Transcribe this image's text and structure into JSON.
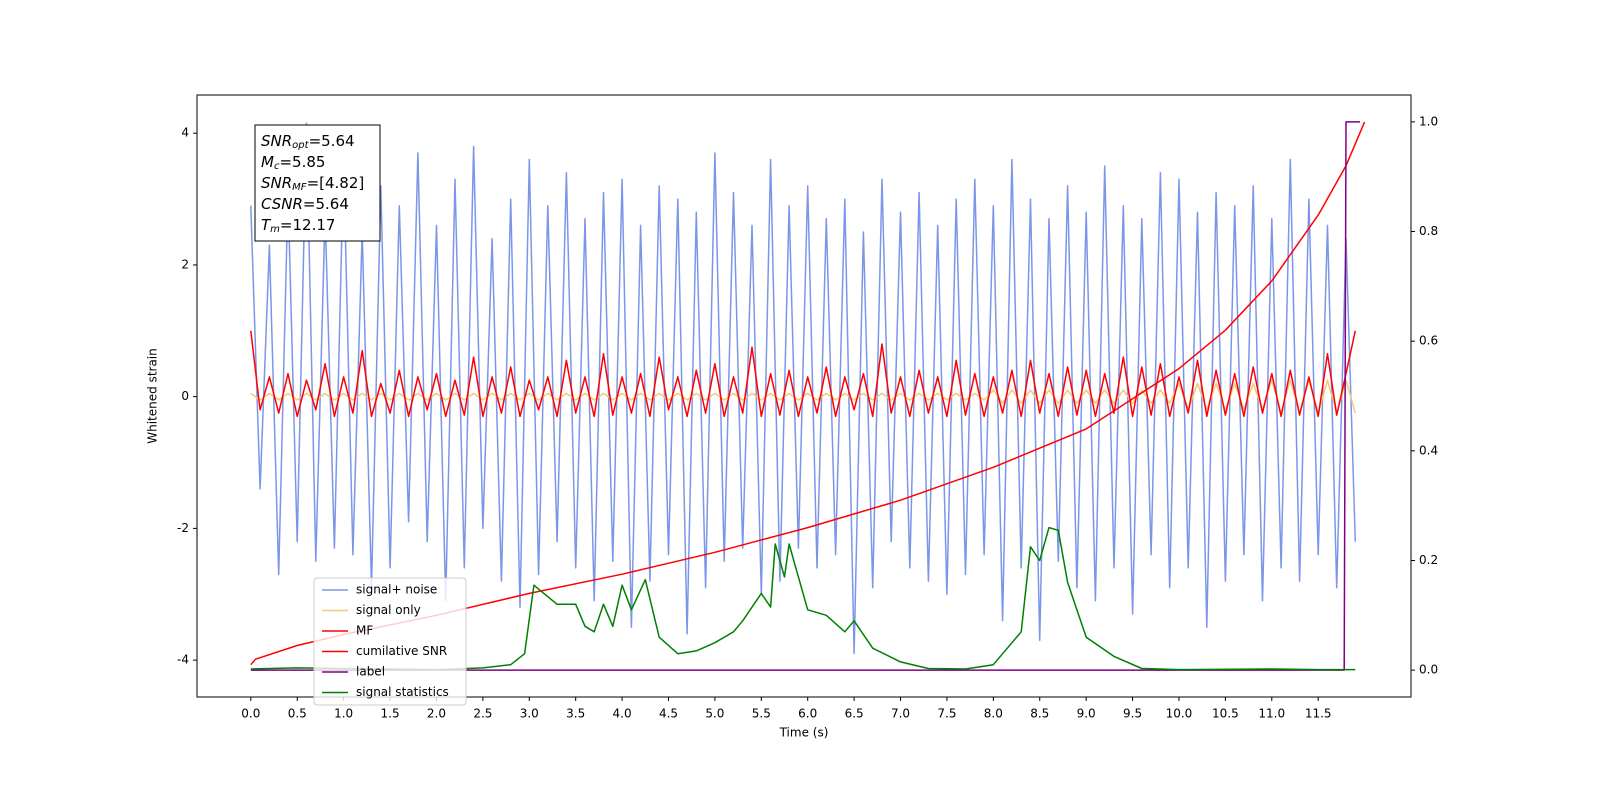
{
  "chart_data": {
    "type": "line",
    "xlabel": "Time (s)",
    "ylabel": "Whitened strain",
    "xlim": [
      -0.58,
      12.5
    ],
    "ylim": [
      -4.56,
      4.58
    ],
    "y2lim": [
      -0.049,
      1.049
    ],
    "xticks": [
      {
        "value": 0,
        "label": "0.0"
      },
      0.5,
      {
        "value": 1,
        "label": "1.0"
      },
      1.5,
      {
        "value": 2,
        "label": "2.0"
      },
      2.5,
      {
        "value": 3,
        "label": "3.0"
      },
      3.5,
      {
        "value": 4,
        "label": "4.0"
      },
      4.5,
      {
        "value": 5,
        "label": "5.0"
      },
      5.5,
      {
        "value": 6,
        "label": "6.0"
      },
      6.5,
      {
        "value": 7,
        "label": "7.0"
      },
      7.5,
      {
        "value": 8,
        "label": "8.0"
      },
      8.5,
      {
        "value": 9,
        "label": "9.0"
      },
      9.5,
      {
        "value": 10,
        "label": "10.0"
      },
      10.5,
      {
        "value": 11,
        "label": "11.0"
      },
      11.5
    ],
    "yticks": [
      -4,
      -2,
      0,
      2,
      4
    ],
    "y2ticks": [
      {
        "value": 0,
        "label": "0.0"
      },
      0.2,
      0.4,
      0.6,
      0.8,
      {
        "value": 1,
        "label": "1.0"
      }
    ],
    "legend": "lower left",
    "annotation": [
      {
        "main": "SNR",
        "sub": "opt",
        "rest": "=5.64"
      },
      {
        "main": "M",
        "sub": "c",
        "rest": "=5.85"
      },
      {
        "main": "SNR",
        "sub": "MF",
        "rest": "=[4.82]"
      },
      {
        "main": "CSNR",
        "rest": "=5.64"
      },
      {
        "main": "T",
        "sub": "m",
        "rest": "=12.17"
      }
    ],
    "x": [
      0.0,
      0.1,
      0.2,
      0.3,
      0.4,
      0.5,
      0.6,
      0.7,
      0.8,
      0.9,
      1.0,
      1.1,
      1.2,
      1.3,
      1.4,
      1.5,
      1.6,
      1.7,
      1.8,
      1.9,
      2.0,
      2.1,
      2.2,
      2.3,
      2.4,
      2.5,
      2.6,
      2.7,
      2.8,
      2.9,
      3.0,
      3.1,
      3.2,
      3.3,
      3.4,
      3.5,
      3.6,
      3.7,
      3.8,
      3.9,
      4.0,
      4.1,
      4.2,
      4.3,
      4.4,
      4.5,
      4.6,
      4.7,
      4.8,
      4.9,
      5.0,
      5.1,
      5.2,
      5.3,
      5.4,
      5.5,
      5.6,
      5.7,
      5.8,
      5.9,
      6.0,
      6.1,
      6.2,
      6.3,
      6.4,
      6.5,
      6.6,
      6.7,
      6.8,
      6.9,
      7.0,
      7.1,
      7.2,
      7.3,
      7.4,
      7.5,
      7.6,
      7.7,
      7.8,
      7.9,
      8.0,
      8.1,
      8.2,
      8.3,
      8.4,
      8.5,
      8.6,
      8.7,
      8.8,
      8.9,
      9.0,
      9.1,
      9.2,
      9.3,
      9.4,
      9.5,
      9.6,
      9.7,
      9.8,
      9.9,
      10.0,
      10.1,
      10.2,
      10.3,
      10.4,
      10.5,
      10.6,
      10.7,
      10.8,
      10.9,
      11.0,
      11.1,
      11.2,
      11.3,
      11.4,
      11.5,
      11.6,
      11.7,
      11.8,
      11.9
    ],
    "series": [
      {
        "name": "signal+ noise",
        "color": "#7b96e8",
        "values": [
          2.9,
          -1.4,
          2.3,
          -2.7,
          3.1,
          -2.2,
          4.15,
          -2.5,
          2.8,
          -2.3,
          3.6,
          -2.4,
          2.5,
          -2.9,
          3.2,
          -2.6,
          2.9,
          -1.9,
          3.7,
          -2.2,
          2.6,
          -3.1,
          3.3,
          -2.6,
          3.8,
          -2.0,
          2.4,
          -2.8,
          3.0,
          -3.2,
          3.6,
          -2.7,
          2.9,
          -2.2,
          3.4,
          -2.6,
          2.7,
          -3.1,
          3.1,
          -2.5,
          3.3,
          -3.5,
          2.6,
          -2.8,
          3.2,
          -2.4,
          3.0,
          -3.6,
          2.8,
          -2.9,
          3.7,
          -2.5,
          3.1,
          -2.3,
          2.6,
          -3.0,
          3.6,
          -2.8,
          2.9,
          -2.3,
          3.2,
          -2.6,
          2.7,
          -2.4,
          3.0,
          -3.9,
          2.5,
          -2.9,
          3.3,
          -2.2,
          2.8,
          -2.6,
          3.1,
          -2.8,
          2.6,
          -3.0,
          3.0,
          -2.7,
          3.3,
          -2.4,
          2.9,
          -3.4,
          3.6,
          -2.6,
          3.0,
          -3.7,
          2.7,
          -2.5,
          3.2,
          -2.9,
          2.8,
          -3.1,
          3.5,
          -2.6,
          2.9,
          -3.3,
          2.7,
          -2.4,
          3.4,
          -2.9,
          3.3,
          -2.6,
          2.8,
          -3.5,
          3.1,
          -2.8,
          2.9,
          -2.4,
          3.2,
          -3.1,
          2.7,
          -2.6,
          3.6,
          -2.8,
          3.0,
          -2.4,
          2.6,
          -2.9,
          2.4,
          -2.2
        ]
      },
      {
        "name": "signal only",
        "color": "#f5c87a",
        "values": [
          0.05,
          -0.05,
          0.05,
          -0.05,
          0.05,
          -0.05,
          0.05,
          -0.05,
          0.05,
          -0.05,
          0.05,
          -0.05,
          0.05,
          -0.05,
          0.05,
          -0.05,
          0.05,
          -0.05,
          0.05,
          -0.05,
          0.05,
          -0.05,
          0.05,
          -0.05,
          0.05,
          -0.05,
          0.05,
          -0.05,
          0.05,
          -0.05,
          0.05,
          -0.05,
          0.05,
          -0.05,
          0.05,
          -0.05,
          0.05,
          -0.05,
          0.05,
          -0.05,
          0.05,
          -0.05,
          0.05,
          -0.05,
          0.05,
          -0.05,
          0.05,
          -0.05,
          0.05,
          -0.05,
          0.05,
          -0.05,
          0.05,
          -0.05,
          0.05,
          -0.05,
          0.05,
          -0.05,
          0.05,
          -0.05,
          0.05,
          -0.05,
          0.05,
          -0.05,
          0.05,
          -0.05,
          0.05,
          -0.05,
          0.05,
          -0.05,
          0.05,
          -0.05,
          0.05,
          -0.05,
          0.05,
          -0.05,
          0.05,
          -0.05,
          0.05,
          -0.05,
          0.1,
          -0.1,
          0.1,
          -0.1,
          0.1,
          -0.1,
          0.1,
          -0.1,
          0.1,
          -0.1,
          0.1,
          -0.1,
          0.1,
          -0.1,
          0.1,
          -0.1,
          0.1,
          -0.1,
          0.1,
          -0.1,
          0.2,
          -0.2,
          0.2,
          -0.2,
          0.2,
          -0.2,
          0.2,
          -0.2,
          0.2,
          -0.2,
          0.25,
          -0.25,
          0.25,
          -0.25,
          0.25,
          -0.25,
          0.25,
          -0.25,
          0.25,
          -0.25
        ]
      },
      {
        "name": "MF",
        "color": "#ff0000",
        "values": [
          1.0,
          -0.2,
          0.3,
          -0.25,
          0.35,
          -0.3,
          0.25,
          -0.2,
          0.5,
          -0.3,
          0.3,
          -0.25,
          0.7,
          -0.3,
          0.2,
          -0.25,
          0.4,
          -0.3,
          0.3,
          -0.2,
          0.35,
          -0.3,
          0.25,
          -0.28,
          0.6,
          -0.3,
          0.3,
          -0.25,
          0.45,
          -0.3,
          0.25,
          -0.2,
          0.3,
          -0.3,
          0.55,
          -0.25,
          0.3,
          -0.3,
          0.65,
          -0.28,
          0.3,
          -0.25,
          0.35,
          -0.3,
          0.6,
          -0.2,
          0.3,
          -0.3,
          0.4,
          -0.25,
          0.5,
          -0.3,
          0.3,
          -0.25,
          0.75,
          -0.3,
          0.35,
          -0.28,
          0.4,
          -0.3,
          0.3,
          -0.25,
          0.45,
          -0.3,
          0.3,
          -0.2,
          0.35,
          -0.3,
          0.8,
          -0.25,
          0.3,
          -0.3,
          0.4,
          -0.25,
          0.3,
          -0.3,
          0.55,
          -0.28,
          0.35,
          -0.3,
          0.3,
          -0.25,
          0.4,
          -0.3,
          0.55,
          -0.25,
          0.35,
          -0.3,
          0.45,
          -0.28,
          0.4,
          -0.3,
          0.35,
          -0.25,
          0.6,
          -0.3,
          0.45,
          -0.28,
          0.5,
          -0.3,
          0.3,
          -0.25,
          0.55,
          -0.3,
          0.4,
          -0.28,
          0.35,
          -0.3,
          0.45,
          -0.25,
          0.35,
          -0.3,
          0.4,
          -0.28,
          0.3,
          -0.3,
          0.65,
          -0.28,
          0.35,
          1.0
        ]
      },
      {
        "name": "cumilative SNR",
        "color": "#ff0000",
        "axis": "y2",
        "x": [
          0.0,
          0.05,
          0.5,
          1.0,
          2.0,
          3.0,
          4.0,
          5.0,
          6.0,
          7.0,
          8.0,
          9.0,
          10.0,
          10.5,
          11.0,
          11.5,
          11.8,
          12.0
        ],
        "values": [
          0.01,
          0.02,
          0.045,
          0.065,
          0.1,
          0.14,
          0.175,
          0.215,
          0.26,
          0.31,
          0.37,
          0.44,
          0.55,
          0.62,
          0.71,
          0.83,
          0.92,
          1.0
        ]
      },
      {
        "name": "label",
        "color": "#800080",
        "axis": "y2",
        "x": [
          0.0,
          11.78,
          11.8,
          11.95
        ],
        "values": [
          0,
          0,
          1,
          1
        ]
      },
      {
        "name": "signal statistics",
        "color": "#008000",
        "axis": "y2",
        "x": [
          0.0,
          0.5,
          1.0,
          1.5,
          2.0,
          2.5,
          2.8,
          2.95,
          3.05,
          3.3,
          3.5,
          3.6,
          3.7,
          3.8,
          3.9,
          4.0,
          4.1,
          4.25,
          4.4,
          4.6,
          4.8,
          5.0,
          5.2,
          5.3,
          5.5,
          5.6,
          5.65,
          5.75,
          5.8,
          5.9,
          6.0,
          6.2,
          6.4,
          6.5,
          6.7,
          7.0,
          7.3,
          7.7,
          8.0,
          8.3,
          8.4,
          8.5,
          8.6,
          8.7,
          8.8,
          9.0,
          9.3,
          9.6,
          10.0,
          11.0,
          11.5,
          11.9
        ],
        "values": [
          0.002,
          0.004,
          0.003,
          0.002,
          0.001,
          0.004,
          0.01,
          0.03,
          0.155,
          0.12,
          0.12,
          0.08,
          0.07,
          0.12,
          0.08,
          0.155,
          0.11,
          0.165,
          0.06,
          0.03,
          0.035,
          0.05,
          0.07,
          0.09,
          0.14,
          0.115,
          0.23,
          0.17,
          0.23,
          0.17,
          0.11,
          0.1,
          0.07,
          0.09,
          0.04,
          0.015,
          0.003,
          0.002,
          0.01,
          0.07,
          0.225,
          0.2,
          0.26,
          0.255,
          0.16,
          0.06,
          0.025,
          0.003,
          0.001,
          0.002,
          0.001,
          0.001
        ]
      }
    ]
  }
}
